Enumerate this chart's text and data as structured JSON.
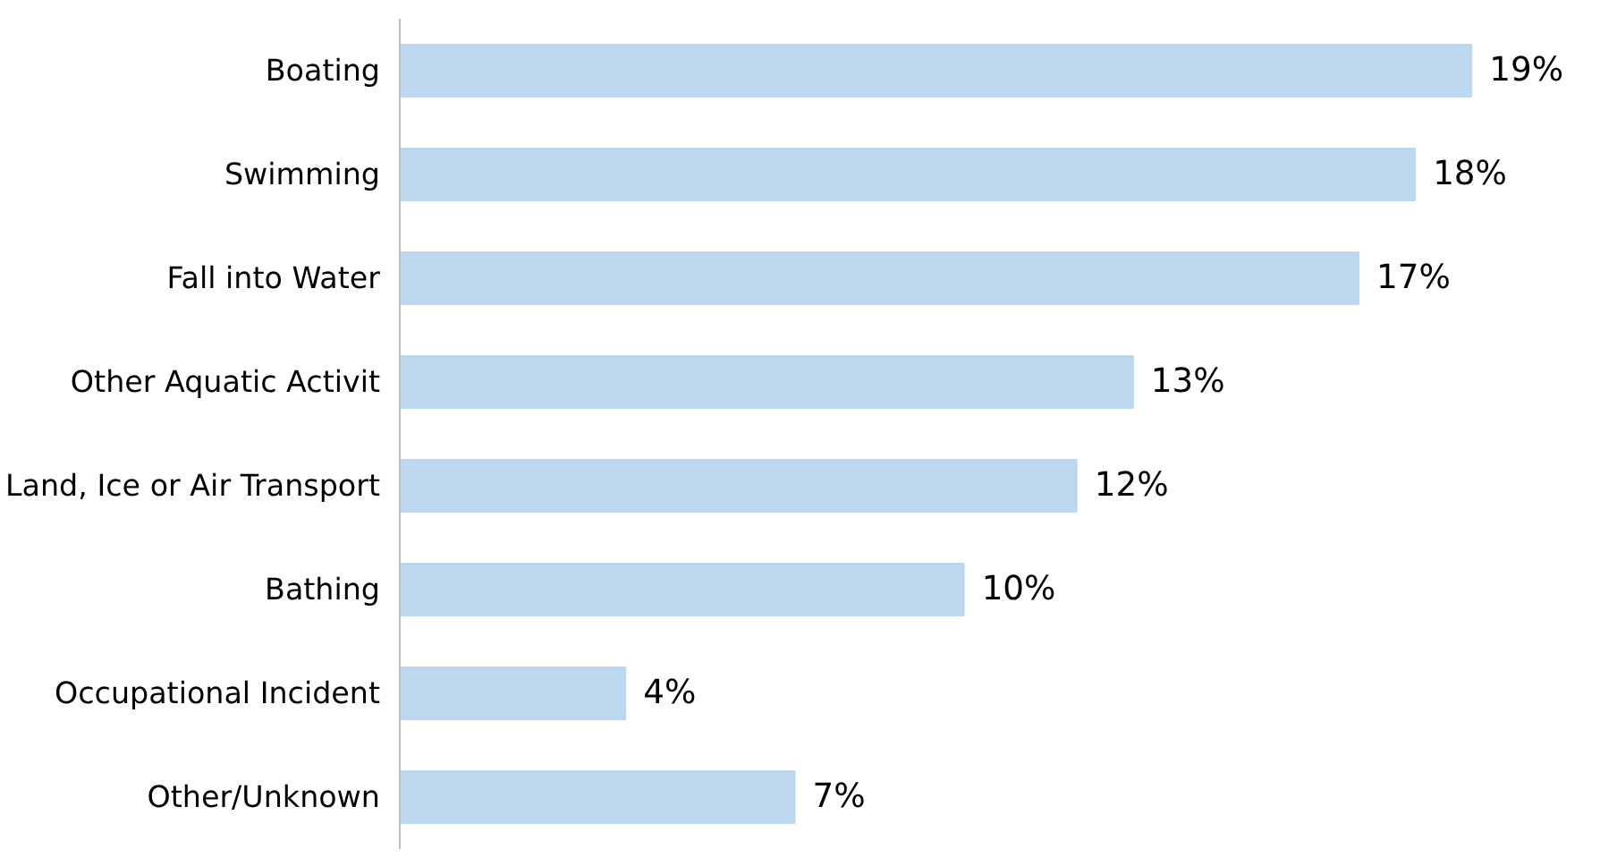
{
  "chart_data": {
    "type": "bar",
    "orientation": "horizontal",
    "categories": [
      "Boating",
      "Swimming",
      "Fall into Water",
      "Other Aquatic Activit",
      "Land, Ice or Air Transport",
      "Bathing",
      "Occupational Incident",
      "Other/Unknown"
    ],
    "values": [
      19,
      18,
      17,
      13,
      12,
      10,
      4,
      7
    ],
    "value_labels": [
      "19%",
      "18%",
      "17%",
      "13%",
      "12%",
      "10%",
      "4%",
      "7%"
    ],
    "color": "#bdd7ee"
  }
}
